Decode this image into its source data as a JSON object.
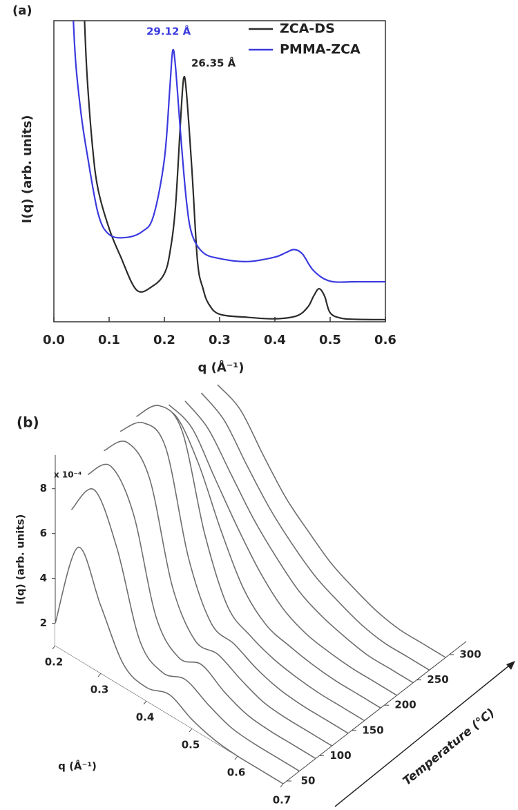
{
  "chart_data": [
    {
      "type": "line",
      "label": "(a)",
      "xlabel": "q (Å⁻¹)",
      "ylabel": "I(q) (arb. units)",
      "xlim": [
        0,
        0.6
      ],
      "xticks": [
        {
          "value": 0,
          "label": "0.0"
        },
        0.1,
        0.2,
        0.3,
        0.4,
        0.5,
        0.6
      ],
      "ylim": [
        0,
        10
      ],
      "legend": "top-right",
      "annotations": [
        {
          "text": "29.12 Å",
          "color": "#3a3adf"
        },
        {
          "text": "26.35 Å",
          "color": "#222222"
        }
      ],
      "series": [
        {
          "name": "ZCA-DS",
          "color": "#2b2b2b",
          "x": [
            0.05,
            0.055,
            0.06,
            0.07,
            0.08,
            0.1,
            0.12,
            0.15,
            0.18,
            0.2,
            0.21,
            0.22,
            0.23,
            0.235,
            0.24,
            0.25,
            0.26,
            0.27,
            0.28,
            0.3,
            0.35,
            0.4,
            0.44,
            0.46,
            0.47,
            0.48,
            0.49,
            0.5,
            0.52,
            0.55,
            0.6
          ],
          "values": [
            12,
            10.2,
            8.2,
            5.8,
            4.4,
            3.1,
            2.2,
            1.05,
            1.2,
            1.6,
            2.3,
            3.8,
            6.9,
            8.1,
            7.6,
            5.0,
            2.0,
            1.1,
            0.6,
            0.25,
            0.15,
            0.1,
            0.2,
            0.5,
            0.85,
            1.1,
            0.85,
            0.3,
            0.12,
            0.08,
            0.07
          ]
        },
        {
          "name": "PMMA-ZCA",
          "color": "#3a3adf",
          "x": [
            0.03,
            0.035,
            0.04,
            0.05,
            0.06,
            0.08,
            0.1,
            0.13,
            0.16,
            0.18,
            0.2,
            0.21,
            0.215,
            0.22,
            0.23,
            0.24,
            0.25,
            0.27,
            0.3,
            0.35,
            0.4,
            0.42,
            0.435,
            0.45,
            0.47,
            0.5,
            0.55,
            0.6
          ],
          "values": [
            12,
            10.1,
            8.5,
            6.8,
            5.6,
            3.6,
            2.9,
            2.8,
            3.0,
            3.5,
            5.4,
            7.8,
            9.0,
            8.5,
            6.1,
            4.0,
            2.9,
            2.3,
            2.1,
            2.0,
            2.15,
            2.3,
            2.4,
            2.25,
            1.7,
            1.35,
            1.33,
            1.33
          ]
        }
      ]
    },
    {
      "type": "waterfall3d",
      "label": "(b)",
      "xlabel": "q (Å⁻¹)",
      "ylabel": "Temperature (°C)",
      "zlabel": "I(q) (arb. units)",
      "multiplier": "x 10⁻⁴",
      "x": [
        0.2,
        0.25,
        0.3,
        0.35,
        0.4,
        0.45,
        0.5,
        0.55,
        0.6,
        0.65,
        0.7
      ],
      "xlim": [
        0.2,
        0.7
      ],
      "xticks": [
        0.2,
        0.3,
        0.4,
        0.5,
        0.6,
        0.7
      ],
      "y": [
        50,
        75,
        100,
        125,
        150,
        175,
        200,
        225,
        250,
        275,
        300
      ],
      "ylim": [
        50,
        300
      ],
      "yticks": [
        50,
        100,
        150,
        200,
        250,
        300
      ],
      "zlim": [
        1,
        9.5
      ],
      "zticks": [
        2,
        4,
        6,
        8
      ],
      "color": "#6e6e6e",
      "values": [
        [
          2.0,
          6.0,
          4.0,
          2.0,
          1.6,
          1.9,
          1.4,
          1.1,
          1.0,
          1.0,
          1.0
        ],
        [
          6.5,
          8.0,
          6.0,
          2.5,
          1.7,
          2.0,
          1.5,
          1.1,
          1.0,
          1.0,
          1.0
        ],
        [
          7.5,
          8.5,
          7.0,
          3.0,
          1.8,
          2.1,
          1.5,
          1.1,
          1.0,
          1.0,
          1.0
        ],
        [
          8.0,
          9.0,
          8.0,
          3.8,
          2.0,
          2.0,
          1.5,
          1.1,
          1.0,
          1.0,
          1.0
        ],
        [
          8.3,
          9.3,
          8.8,
          4.5,
          2.2,
          1.9,
          1.4,
          1.1,
          1.0,
          1.0,
          1.0
        ],
        [
          8.4,
          9.5,
          9.0,
          5.0,
          2.4,
          1.7,
          1.3,
          1.1,
          1.0,
          1.0,
          1.0
        ],
        [
          8.2,
          8.5,
          7.0,
          4.6,
          2.6,
          1.6,
          1.3,
          1.1,
          1.0,
          1.0,
          1.0
        ],
        [
          7.8,
          7.4,
          5.8,
          4.2,
          2.8,
          1.8,
          1.3,
          1.1,
          1.0,
          1.0,
          1.0
        ],
        [
          7.4,
          6.8,
          5.4,
          4.0,
          2.9,
          2.0,
          1.5,
          1.2,
          1.0,
          1.0,
          1.0
        ],
        [
          7.2,
          6.6,
          5.2,
          3.9,
          2.9,
          2.1,
          1.6,
          1.2,
          1.0,
          1.0,
          1.0
        ],
        [
          7.0,
          6.5,
          5.1,
          3.8,
          2.9,
          2.1,
          1.6,
          1.2,
          1.0,
          1.0,
          1.0
        ]
      ]
    }
  ]
}
